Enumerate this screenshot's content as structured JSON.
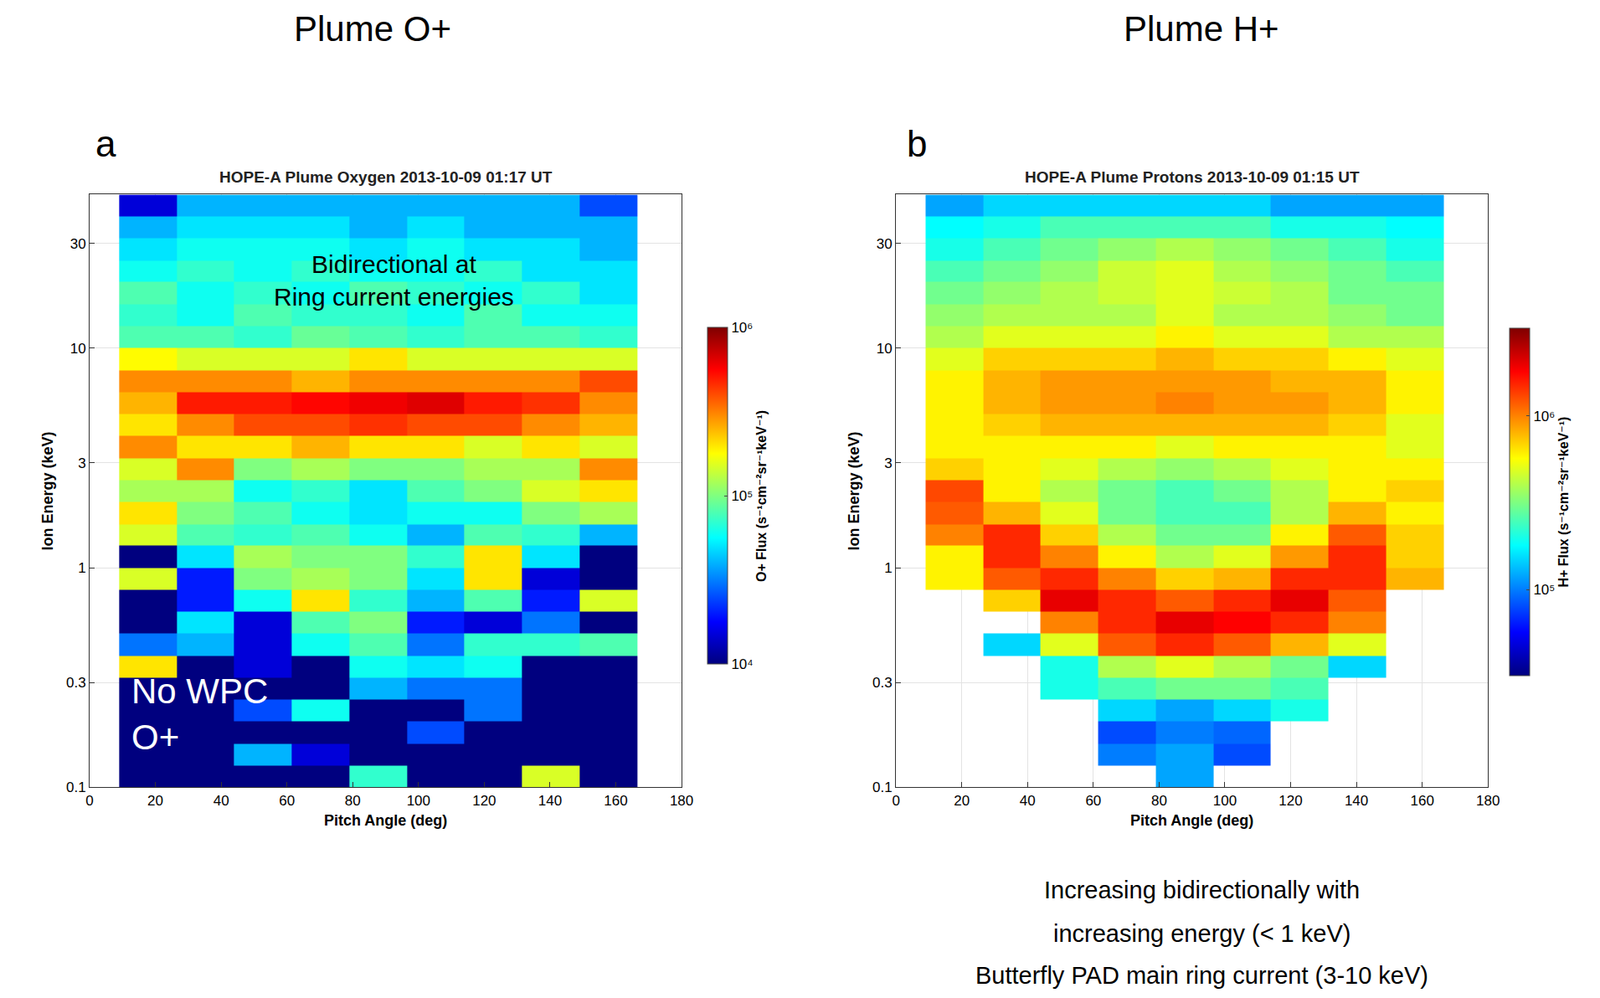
{
  "chart_data": [
    {
      "type": "heatmap",
      "header": "Plume O+",
      "panel_label": "a",
      "title": "HOPE-A Plume Oxygen 2013-10-09 01:17 UT",
      "x_label": "Pitch Angle (deg)",
      "y_label": "Ion Energy (keV)",
      "x": [
        9,
        26.5,
        44,
        61.5,
        79,
        96.5,
        114,
        131.5,
        149,
        166.5
      ],
      "y": [
        0.1,
        0.126,
        0.158,
        0.2,
        0.251,
        0.316,
        0.398,
        0.501,
        0.631,
        0.794,
        1,
        1.26,
        1.58,
        2,
        2.51,
        3.16,
        3.98,
        5.01,
        6.31,
        7.94,
        10,
        12.6,
        15.8,
        20,
        25.1,
        31.6,
        39.8,
        50
      ],
      "xlim": [
        0,
        180
      ],
      "xticks": [
        0,
        20,
        40,
        60,
        80,
        100,
        120,
        140,
        160,
        180
      ],
      "ylim": [
        0.1,
        50
      ],
      "yticks": [
        0.1,
        0.3,
        1,
        3,
        10,
        30
      ],
      "log": "y",
      "grid": true,
      "z": [
        [
          8000.0,
          8000.0,
          8000.0,
          8000.0,
          70000.0,
          8000.0,
          8000.0,
          150000.0,
          8000.0
        ],
        [
          8000.0,
          8000.0,
          40000.0,
          15000.0,
          8000.0,
          8000.0,
          8000.0,
          8000.0,
          8000.0
        ],
        [
          8000.0,
          8000.0,
          8000.0,
          8000.0,
          8000.0,
          25000.0,
          8000.0,
          8000.0,
          8000.0
        ],
        [
          8000.0,
          8000.0,
          25000.0,
          60000.0,
          8000.0,
          8000.0,
          30000.0,
          8000.0,
          8000.0
        ],
        [
          8000.0,
          8000.0,
          8000.0,
          8000.0,
          40000.0,
          30000.0,
          30000.0,
          8000.0,
          8000.0
        ],
        [
          200000.0,
          8000.0,
          15000.0,
          8000.0,
          60000.0,
          50000.0,
          60000.0,
          8000.0,
          8000.0
        ],
        [
          30000.0,
          40000.0,
          15000.0,
          60000.0,
          80000.0,
          30000.0,
          70000.0,
          70000.0,
          80000.0
        ],
        [
          8000.0,
          50000.0,
          15000.0,
          80000.0,
          100000.0,
          20000.0,
          15000.0,
          30000.0,
          8000.0
        ],
        [
          8000.0,
          20000.0,
          60000.0,
          200000.0,
          70000.0,
          40000.0,
          80000.0,
          20000.0,
          150000.0
        ],
        [
          150000.0,
          20000.0,
          100000.0,
          120000.0,
          100000.0,
          50000.0,
          200000.0,
          15000.0,
          8000.0
        ],
        [
          8000.0,
          50000.0,
          120000.0,
          100000.0,
          100000.0,
          70000.0,
          200000.0,
          50000.0,
          8000.0
        ],
        [
          150000.0,
          80000.0,
          70000.0,
          80000.0,
          60000.0,
          40000.0,
          80000.0,
          70000.0,
          40000.0
        ],
        [
          200000.0,
          100000.0,
          80000.0,
          60000.0,
          50000.0,
          60000.0,
          60000.0,
          100000.0,
          120000.0
        ],
        [
          120000.0,
          120000.0,
          60000.0,
          70000.0,
          50000.0,
          80000.0,
          100000.0,
          150000.0,
          200000.0
        ],
        [
          150000.0,
          300000.0,
          100000.0,
          120000.0,
          100000.0,
          100000.0,
          120000.0,
          120000.0,
          300000.0
        ],
        [
          300000.0,
          200000.0,
          200000.0,
          250000.0,
          200000.0,
          200000.0,
          150000.0,
          200000.0,
          150000.0
        ],
        [
          200000.0,
          300000.0,
          400000.0,
          400000.0,
          450000.0,
          400000.0,
          400000.0,
          300000.0,
          250000.0
        ],
        [
          250000.0,
          500000.0,
          500000.0,
          550000.0,
          600000.0,
          650000.0,
          500000.0,
          450000.0,
          300000.0
        ],
        [
          300000.0,
          300000.0,
          300000.0,
          250000.0,
          300000.0,
          300000.0,
          300000.0,
          300000.0,
          400000.0
        ],
        [
          180000.0,
          150000.0,
          150000.0,
          150000.0,
          200000.0,
          150000.0,
          150000.0,
          150000.0,
          150000.0
        ],
        [
          80000.0,
          80000.0,
          70000.0,
          90000.0,
          80000.0,
          70000.0,
          80000.0,
          80000.0,
          70000.0
        ],
        [
          70000.0,
          60000.0,
          80000.0,
          70000.0,
          70000.0,
          60000.0,
          80000.0,
          60000.0,
          60000.0
        ],
        [
          80000.0,
          60000.0,
          70000.0,
          60000.0,
          80000.0,
          70000.0,
          60000.0,
          70000.0,
          50000.0
        ],
        [
          60000.0,
          70000.0,
          60000.0,
          70000.0,
          60000.0,
          60000.0,
          70000.0,
          50000.0,
          50000.0
        ],
        [
          50000.0,
          60000.0,
          60000.0,
          60000.0,
          50000.0,
          60000.0,
          50000.0,
          50000.0,
          40000.0
        ],
        [
          40000.0,
          50000.0,
          50000.0,
          50000.0,
          40000.0,
          50000.0,
          40000.0,
          40000.0,
          40000.0
        ],
        [
          15000.0,
          40000.0,
          40000.0,
          40000.0,
          40000.0,
          40000.0,
          40000.0,
          40000.0,
          25000.0
        ]
      ],
      "colorbar": {
        "title": "O+ Flux (s⁻¹cm⁻²sr⁻¹keV⁻¹)",
        "range": [
          10000.0,
          1000000.0
        ],
        "ticks": [
          {
            "value": 10000.0,
            "label": "10⁴"
          },
          {
            "value": 100000.0,
            "label": "10⁵"
          },
          {
            "value": 1000000.0,
            "label": "10⁶"
          }
        ]
      },
      "annotations": [
        {
          "lines": [
            "Bidirectional at",
            "Ring current energies"
          ]
        },
        {
          "lines": [
            "No WPC",
            "O+"
          ]
        }
      ]
    },
    {
      "type": "heatmap",
      "header": "Plume H+",
      "panel_label": "b",
      "title": "HOPE-A Plume Protons 2013-10-09 01:15 UT",
      "x_label": "Pitch Angle (deg)",
      "y_label": "Ion Energy (keV)",
      "x": [
        9,
        26.5,
        44,
        61.5,
        79,
        96.5,
        114,
        131.5,
        149,
        166.5
      ],
      "y": [
        0.1,
        0.126,
        0.158,
        0.2,
        0.251,
        0.316,
        0.398,
        0.501,
        0.631,
        0.794,
        1,
        1.26,
        1.58,
        2,
        2.51,
        3.16,
        3.98,
        5.01,
        6.31,
        7.94,
        10,
        12.6,
        15.8,
        20,
        25.1,
        31.6,
        39.8,
        50
      ],
      "xlim": [
        0,
        180
      ],
      "xticks": [
        0,
        20,
        40,
        60,
        80,
        100,
        120,
        140,
        160,
        180
      ],
      "ylim": [
        0.1,
        50
      ],
      "yticks": [
        0.1,
        0.3,
        1,
        3,
        10,
        30
      ],
      "log": "y",
      "grid": true,
      "z": [
        [
          null,
          null,
          null,
          null,
          120000.0,
          null,
          null,
          null,
          null
        ],
        [
          null,
          null,
          null,
          100000.0,
          120000.0,
          80000.0,
          null,
          null,
          null
        ],
        [
          null,
          null,
          null,
          80000.0,
          100000.0,
          90000.0,
          null,
          null,
          null
        ],
        [
          null,
          null,
          null,
          150000.0,
          120000.0,
          150000.0,
          200000.0,
          null,
          null
        ],
        [
          null,
          null,
          200000.0,
          250000.0,
          300000.0,
          300000.0,
          250000.0,
          null,
          null
        ],
        [
          null,
          null,
          200000.0,
          400000.0,
          500000.0,
          400000.0,
          300000.0,
          150000.0,
          null
        ],
        [
          null,
          150000.0,
          500000.0,
          1200000.0,
          1500000.0,
          1200000.0,
          800000.0,
          500000.0,
          null
        ],
        [
          null,
          null,
          1000000.0,
          1500000.0,
          2000000.0,
          1800000.0,
          1500000.0,
          1000000.0,
          null
        ],
        [
          null,
          700000.0,
          2000000.0,
          1500000.0,
          1200000.0,
          1500000.0,
          2000000.0,
          1200000.0,
          null
        ],
        [
          600000.0,
          1200000.0,
          1500000.0,
          1000000.0,
          700000.0,
          800000.0,
          1500000.0,
          1500000.0,
          800000.0
        ],
        [
          600000.0,
          1500000.0,
          1000000.0,
          600000.0,
          400000.0,
          500000.0,
          900000.0,
          1500000.0,
          700000.0
        ],
        [
          1000000.0,
          1500000.0,
          700000.0,
          400000.0,
          300000.0,
          300000.0,
          600000.0,
          1200000.0,
          700000.0
        ],
        [
          1200000.0,
          800000.0,
          500000.0,
          300000.0,
          250000.0,
          250000.0,
          400000.0,
          800000.0,
          600000.0
        ],
        [
          1300000.0,
          600000.0,
          400000.0,
          300000.0,
          250000.0,
          300000.0,
          400000.0,
          600000.0,
          700000.0
        ],
        [
          700000.0,
          600000.0,
          500000.0,
          400000.0,
          350000.0,
          400000.0,
          500000.0,
          600000.0,
          600000.0
        ],
        [
          600000.0,
          600000.0,
          600000.0,
          600000.0,
          500000.0,
          600000.0,
          600000.0,
          600000.0,
          500000.0
        ],
        [
          600000.0,
          700000.0,
          800000.0,
          800000.0,
          800000.0,
          800000.0,
          800000.0,
          700000.0,
          500000.0
        ],
        [
          600000.0,
          800000.0,
          900000.0,
          900000.0,
          1000000.0,
          900000.0,
          900000.0,
          800000.0,
          600000.0
        ],
        [
          600000.0,
          800000.0,
          900000.0,
          900000.0,
          900000.0,
          900000.0,
          800000.0,
          800000.0,
          600000.0
        ],
        [
          500000.0,
          700000.0,
          700000.0,
          700000.0,
          800000.0,
          700000.0,
          700000.0,
          600000.0,
          500000.0
        ],
        [
          400000.0,
          500000.0,
          500000.0,
          500000.0,
          600000.0,
          500000.0,
          500000.0,
          400000.0,
          400000.0
        ],
        [
          350000.0,
          400000.0,
          400000.0,
          400000.0,
          500000.0,
          400000.0,
          400000.0,
          350000.0,
          300000.0
        ],
        [
          300000.0,
          350000.0,
          400000.0,
          450000.0,
          500000.0,
          450000.0,
          400000.0,
          300000.0,
          300000.0
        ],
        [
          250000.0,
          300000.0,
          350000.0,
          450000.0,
          500000.0,
          400000.0,
          350000.0,
          300000.0,
          250000.0
        ],
        [
          200000.0,
          250000.0,
          300000.0,
          350000.0,
          400000.0,
          350000.0,
          300000.0,
          250000.0,
          200000.0
        ],
        [
          180000.0,
          200000.0,
          250000.0,
          250000.0,
          250000.0,
          250000.0,
          200000.0,
          200000.0,
          180000.0
        ],
        [
          120000.0,
          150000.0,
          150000.0,
          150000.0,
          150000.0,
          150000.0,
          120000.0,
          120000.0,
          120000.0
        ]
      ],
      "colorbar": {
        "title": "H+ Flux (s⁻¹cm⁻²sr⁻¹keV⁻¹)",
        "range": [
          32000.0,
          3200000.0
        ],
        "ticks": [
          {
            "value": 100000.0,
            "label": "10⁵"
          },
          {
            "value": 1000000.0,
            "label": "10⁶"
          }
        ]
      },
      "annotations": [
        {
          "lines": [
            "Increasing bidirectionally with",
            "increasing energy (< 1 keV)",
            "Butterfly PAD main ring current (3-10 keV)"
          ]
        }
      ]
    }
  ]
}
